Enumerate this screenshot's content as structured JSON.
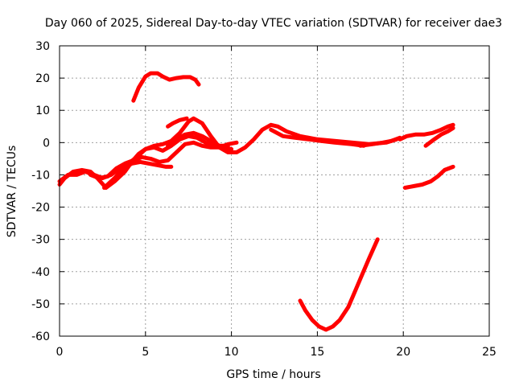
{
  "chart_data": {
    "type": "line",
    "title": "Day 060 of 2025, Sidereal Day-to-day VTEC variation (SDTVAR) for receiver dae3",
    "xlabel": "GPS time / hours",
    "ylabel": "SDTVAR / TECUs",
    "xlim": [
      0,
      25
    ],
    "ylim": [
      -60,
      30
    ],
    "xticks": [
      0,
      5,
      10,
      15,
      20,
      25
    ],
    "yticks": [
      -60,
      -50,
      -40,
      -30,
      -20,
      -10,
      0,
      10,
      20,
      30
    ],
    "grid": true,
    "line_color": "#ff0000",
    "series": [
      {
        "name": "arc-1",
        "points": [
          [
            0,
            -13
          ],
          [
            0.3,
            -11
          ],
          [
            0.8,
            -9
          ],
          [
            1.3,
            -8.5
          ],
          [
            1.8,
            -9
          ],
          [
            2.2,
            -11
          ],
          [
            2.7,
            -14
          ],
          [
            3.2,
            -12
          ],
          [
            3.8,
            -9
          ],
          [
            4.2,
            -6
          ],
          [
            4.6,
            -3.5
          ],
          [
            5.0,
            -2
          ],
          [
            5.5,
            -1
          ],
          [
            6.0,
            -0.5
          ],
          [
            6.5,
            0.5
          ],
          [
            7.0,
            3
          ],
          [
            7.5,
            6.5
          ],
          [
            7.8,
            7.5
          ],
          [
            8.3,
            6
          ],
          [
            8.8,
            2
          ],
          [
            9.3,
            -1.5
          ],
          [
            9.8,
            -3
          ],
          [
            10.3,
            -3
          ],
          [
            10.8,
            -1.5
          ],
          [
            11.3,
            1
          ],
          [
            11.8,
            4
          ],
          [
            12.3,
            5.5
          ],
          [
            12.7,
            5
          ],
          [
            13.2,
            3.5
          ],
          [
            14,
            2
          ],
          [
            15,
            1
          ],
          [
            16,
            0.5
          ],
          [
            17,
            0
          ],
          [
            18,
            -0.5
          ],
          [
            19,
            0
          ],
          [
            19.6,
            1
          ]
        ]
      },
      {
        "name": "arc-2",
        "points": [
          [
            0,
            -12
          ],
          [
            0.5,
            -10
          ],
          [
            1.0,
            -10
          ],
          [
            1.5,
            -9
          ],
          [
            2.0,
            -10
          ],
          [
            2.5,
            -11
          ],
          [
            3.0,
            -10
          ],
          [
            3.5,
            -8
          ],
          [
            4.0,
            -6.5
          ],
          [
            4.5,
            -4.5
          ],
          [
            5.0,
            -2
          ],
          [
            5.5,
            -1.5
          ],
          [
            6.0,
            -2.5
          ],
          [
            6.5,
            -1
          ],
          [
            7.0,
            1
          ],
          [
            7.5,
            2
          ],
          [
            8.0,
            1.5
          ],
          [
            8.5,
            0
          ],
          [
            9.0,
            -1
          ],
          [
            9.5,
            -1.5
          ],
          [
            10.0,
            -2
          ]
        ]
      },
      {
        "name": "arc-3",
        "points": [
          [
            1.8,
            -10
          ],
          [
            2.3,
            -11
          ],
          [
            2.8,
            -10.5
          ],
          [
            3.3,
            -8
          ],
          [
            3.8,
            -6.5
          ],
          [
            4.3,
            -5.5
          ],
          [
            4.8,
            -4.5
          ],
          [
            5.3,
            -5
          ],
          [
            5.8,
            -6
          ],
          [
            6.3,
            -5.5
          ],
          [
            6.8,
            -3
          ],
          [
            7.3,
            -0.5
          ],
          [
            7.8,
            0
          ],
          [
            8.3,
            -1
          ],
          [
            8.8,
            -1.5
          ],
          [
            9.3,
            -1.5
          ],
          [
            9.8,
            -0.5
          ],
          [
            10.3,
            0
          ]
        ]
      },
      {
        "name": "arc-4",
        "points": [
          [
            2.6,
            -14
          ],
          [
            3.2,
            -11
          ],
          [
            3.7,
            -8
          ],
          [
            4.2,
            -6.5
          ],
          [
            4.7,
            -6
          ],
          [
            5.2,
            -6.5
          ],
          [
            5.7,
            -7
          ],
          [
            6.2,
            -7.5
          ],
          [
            6.5,
            -7.5
          ]
        ]
      },
      {
        "name": "arc-5",
        "points": [
          [
            6.3,
            5
          ],
          [
            6.6,
            6
          ],
          [
            7.0,
            7
          ],
          [
            7.4,
            7.5
          ]
        ]
      },
      {
        "name": "arc-6",
        "points": [
          [
            6.3,
            -1
          ],
          [
            6.8,
            1
          ],
          [
            7.3,
            2.5
          ],
          [
            7.8,
            3
          ],
          [
            8.3,
            2
          ],
          [
            8.8,
            0.5
          ],
          [
            9.3,
            -1
          ],
          [
            9.8,
            -1
          ]
        ]
      },
      {
        "name": "arc-7",
        "points": [
          [
            4.3,
            13
          ],
          [
            4.6,
            17
          ],
          [
            5.0,
            20.5
          ],
          [
            5.3,
            21.5
          ],
          [
            5.7,
            21.5
          ],
          [
            6.0,
            20.5
          ],
          [
            6.4,
            19.5
          ],
          [
            6.8,
            20
          ],
          [
            7.2,
            20.3
          ],
          [
            7.6,
            20.3
          ],
          [
            7.9,
            19.5
          ],
          [
            8.1,
            18
          ]
        ]
      },
      {
        "name": "arc-8",
        "points": [
          [
            12.3,
            4
          ],
          [
            13,
            2
          ],
          [
            13.7,
            1.5
          ],
          [
            14.5,
            1
          ],
          [
            15.2,
            0.5
          ],
          [
            16,
            0
          ],
          [
            17,
            -0.5
          ],
          [
            17.7,
            -1
          ]
        ]
      },
      {
        "name": "arc-9",
        "points": [
          [
            17.5,
            -1
          ],
          [
            18.2,
            -0.5
          ],
          [
            18.8,
            0
          ],
          [
            19.3,
            0.5
          ],
          [
            19.8,
            1.5
          ]
        ]
      },
      {
        "name": "arc-10",
        "points": [
          [
            19.8,
            1
          ],
          [
            20.2,
            2
          ],
          [
            20.7,
            2.5
          ],
          [
            21.2,
            2.5
          ],
          [
            21.7,
            3
          ],
          [
            22.2,
            4
          ],
          [
            22.6,
            5
          ],
          [
            22.9,
            5.5
          ]
        ]
      },
      {
        "name": "arc-11",
        "points": [
          [
            21.3,
            -1
          ],
          [
            21.8,
            1
          ],
          [
            22.2,
            2.5
          ],
          [
            22.6,
            3.5
          ],
          [
            22.9,
            4.5
          ]
        ]
      },
      {
        "name": "arc-12",
        "points": [
          [
            20.1,
            -14
          ],
          [
            20.6,
            -13.5
          ],
          [
            21.1,
            -13
          ],
          [
            21.6,
            -12
          ],
          [
            22.0,
            -10.5
          ],
          [
            22.4,
            -8.5
          ],
          [
            22.9,
            -7.5
          ]
        ]
      },
      {
        "name": "arc-13",
        "points": [
          [
            14.0,
            -49
          ],
          [
            14.3,
            -52
          ],
          [
            14.7,
            -55
          ],
          [
            15.1,
            -57
          ],
          [
            15.5,
            -58
          ],
          [
            15.9,
            -57
          ],
          [
            16.3,
            -55
          ],
          [
            16.8,
            -51
          ],
          [
            17.2,
            -46
          ],
          [
            17.6,
            -41
          ],
          [
            18.0,
            -36
          ],
          [
            18.5,
            -30
          ]
        ]
      }
    ]
  }
}
